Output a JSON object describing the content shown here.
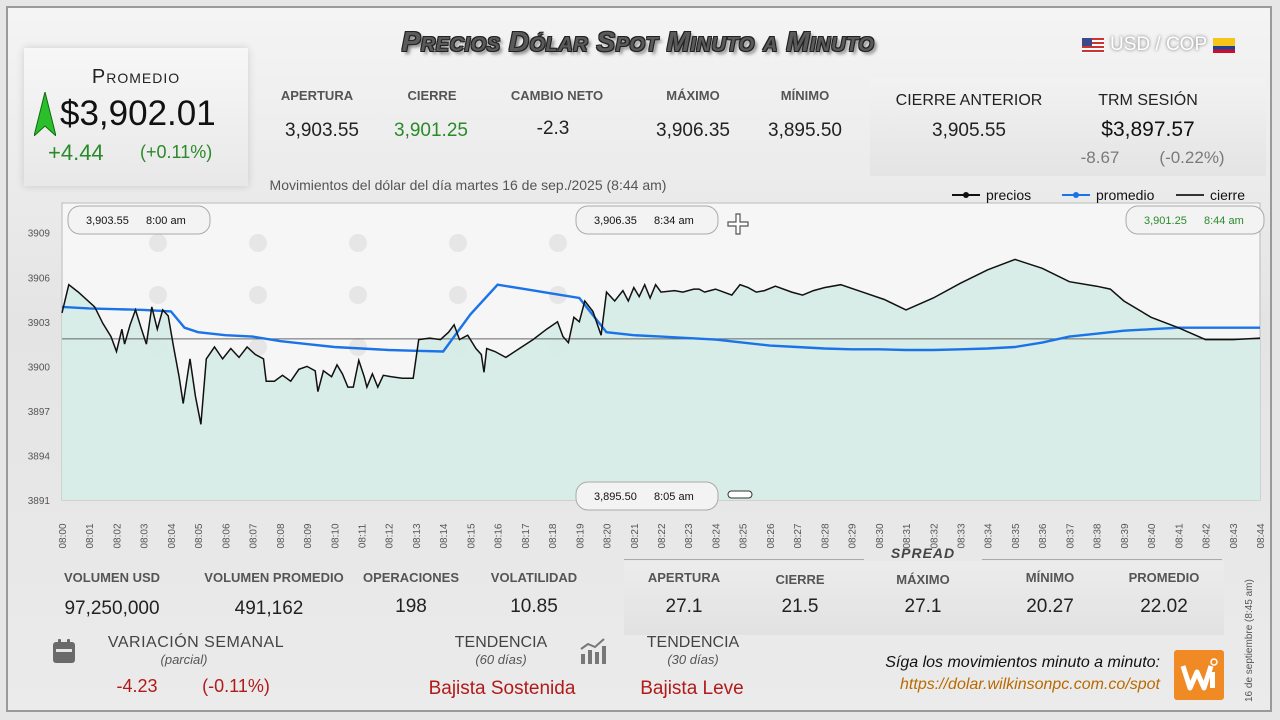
{
  "header": {
    "title": "Precios Dólar Spot Minuto a Minuto",
    "pair": "USD / COP"
  },
  "promedio": {
    "label": "Promedio",
    "value": "$3,902.01",
    "change": "+4.44",
    "change_pct": "(+0.11%)"
  },
  "stats": [
    {
      "label": "APERTURA",
      "value": "3,903.55"
    },
    {
      "label": "CIERRE",
      "value": "3,901.25"
    },
    {
      "label": "CAMBIO NETO",
      "value": "-2.3"
    },
    {
      "label": "MÁXIMO",
      "value": "3,906.35"
    },
    {
      "label": "MÍNIMO",
      "value": "3,895.50"
    }
  ],
  "cierre_anterior": {
    "label": "CIERRE ANTERIOR",
    "value": "3,905.55"
  },
  "trm": {
    "label": "TRM SESIÓN",
    "value": "$3,897.57",
    "change": "-8.67",
    "change_pct": "(-0.22%)"
  },
  "chart_data": {
    "type": "line",
    "title": "Movimientos del dólar del día martes 16 de sep./2025 (8:44 am)",
    "legend": [
      "precios",
      "promedio",
      "cierre"
    ],
    "legend_position": "top-right",
    "ylim": [
      3891,
      3911
    ],
    "yticks": [
      3891,
      3894,
      3897,
      3900,
      3903,
      3906,
      3909
    ],
    "xticks": [
      "08:00",
      "08:01",
      "08:02",
      "08:03",
      "08:04",
      "08:05",
      "08:06",
      "08:07",
      "08:08",
      "08:09",
      "08:10",
      "08:11",
      "08:12",
      "08:13",
      "08:14",
      "08:15",
      "08:16",
      "08:17",
      "08:18",
      "08:19",
      "08:20",
      "08:21",
      "08:22",
      "08:23",
      "08:24",
      "08:25",
      "08:26",
      "08:27",
      "08:28",
      "08:29",
      "08:30",
      "08:31",
      "08:32",
      "08:33",
      "08:34",
      "08:35",
      "08:36",
      "08:37",
      "08:38",
      "08:39",
      "08:40",
      "08:41",
      "08:42",
      "08:43",
      "08:44"
    ],
    "series": [
      {
        "name": "precios",
        "color": "#111111",
        "points": [
          [
            0,
            3903.6
          ],
          [
            0.25,
            3905.5
          ],
          [
            0.6,
            3905.0
          ],
          [
            1.2,
            3904.0
          ],
          [
            1.5,
            3902.9
          ],
          [
            1.8,
            3902.0
          ],
          [
            2.0,
            3901.0
          ],
          [
            2.2,
            3902.5
          ],
          [
            2.3,
            3901.5
          ],
          [
            2.5,
            3902.8
          ],
          [
            2.7,
            3903.8
          ],
          [
            2.9,
            3902.6
          ],
          [
            3.1,
            3901.5
          ],
          [
            3.3,
            3904.0
          ],
          [
            3.5,
            3902.5
          ],
          [
            3.7,
            3903.8
          ],
          [
            3.9,
            3903.4
          ],
          [
            4.1,
            3901.3
          ],
          [
            4.3,
            3899.3
          ],
          [
            4.45,
            3897.5
          ],
          [
            4.7,
            3900.5
          ],
          [
            4.9,
            3898.0
          ],
          [
            5.1,
            3896.1
          ],
          [
            5.3,
            3900.5
          ],
          [
            5.6,
            3901.3
          ],
          [
            5.9,
            3900.5
          ],
          [
            6.2,
            3901.2
          ],
          [
            6.5,
            3900.6
          ],
          [
            6.8,
            3901.3
          ],
          [
            7.1,
            3900.8
          ],
          [
            7.4,
            3900.5
          ],
          [
            7.5,
            3899.0
          ],
          [
            7.8,
            3899.0
          ],
          [
            8.1,
            3899.4
          ],
          [
            8.4,
            3899.0
          ],
          [
            8.7,
            3899.8
          ],
          [
            9.0,
            3900.0
          ],
          [
            9.3,
            3899.7
          ],
          [
            9.4,
            3898.3
          ],
          [
            9.6,
            3899.7
          ],
          [
            9.9,
            3899.3
          ],
          [
            10.1,
            3900.1
          ],
          [
            10.3,
            3899.5
          ],
          [
            10.5,
            3898.6
          ],
          [
            10.7,
            3898.6
          ],
          [
            10.9,
            3900.4
          ],
          [
            11.1,
            3899.3
          ],
          [
            11.2,
            3898.6
          ],
          [
            11.4,
            3899.5
          ],
          [
            11.6,
            3898.6
          ],
          [
            11.8,
            3899.4
          ],
          [
            12.1,
            3899.3
          ],
          [
            12.5,
            3899.2
          ],
          [
            12.9,
            3899.2
          ],
          [
            13.1,
            3901.8
          ],
          [
            13.5,
            3901.9
          ],
          [
            13.9,
            3901.8
          ],
          [
            14.2,
            3902.3
          ],
          [
            14.4,
            3902.8
          ],
          [
            14.6,
            3901.8
          ],
          [
            14.9,
            3902.1
          ],
          [
            15.2,
            3901.2
          ],
          [
            15.4,
            3900.8
          ],
          [
            15.5,
            3899.6
          ],
          [
            15.6,
            3901.2
          ],
          [
            15.9,
            3901.0
          ],
          [
            16.3,
            3900.6
          ],
          [
            16.8,
            3901.2
          ],
          [
            17.3,
            3901.8
          ],
          [
            17.8,
            3902.5
          ],
          [
            18.2,
            3903.0
          ],
          [
            18.4,
            3902.0
          ],
          [
            18.6,
            3901.6
          ],
          [
            18.8,
            3903.3
          ],
          [
            19.0,
            3903.0
          ],
          [
            19.2,
            3904.4
          ],
          [
            19.5,
            3903.7
          ],
          [
            19.8,
            3902.1
          ],
          [
            20.0,
            3905.0
          ],
          [
            20.3,
            3904.4
          ],
          [
            20.6,
            3905.1
          ],
          [
            20.8,
            3904.4
          ],
          [
            21.0,
            3905.3
          ],
          [
            21.2,
            3904.7
          ],
          [
            21.4,
            3905.5
          ],
          [
            21.6,
            3904.6
          ],
          [
            21.8,
            3905.5
          ],
          [
            22.0,
            3905.0
          ],
          [
            22.5,
            3905.1
          ],
          [
            22.8,
            3905.0
          ],
          [
            23.2,
            3905.2
          ],
          [
            23.4,
            3905.2
          ],
          [
            23.6,
            3905.0
          ],
          [
            23.8,
            3905.1
          ],
          [
            24.0,
            3905.2
          ],
          [
            24.3,
            3905.0
          ],
          [
            24.6,
            3904.8
          ],
          [
            24.9,
            3905.5
          ],
          [
            25.2,
            3905.3
          ],
          [
            25.5,
            3905.0
          ],
          [
            25.8,
            3905.1
          ],
          [
            26.2,
            3905.4
          ],
          [
            26.8,
            3905.0
          ],
          [
            27.2,
            3904.8
          ],
          [
            27.6,
            3905.1
          ],
          [
            28.0,
            3905.3
          ],
          [
            28.6,
            3905.5
          ],
          [
            29.4,
            3905.0
          ],
          [
            30.2,
            3904.5
          ],
          [
            31.0,
            3903.8
          ],
          [
            32.0,
            3904.6
          ],
          [
            33.0,
            3905.6
          ],
          [
            34.0,
            3906.5
          ],
          [
            35.0,
            3907.2
          ],
          [
            36.0,
            3906.6
          ],
          [
            37.0,
            3905.7
          ],
          [
            38.0,
            3905.4
          ],
          [
            38.5,
            3905.2
          ],
          [
            39.0,
            3904.4
          ],
          [
            40.0,
            3903.3
          ],
          [
            41.0,
            3902.6
          ],
          [
            42.0,
            3901.8
          ],
          [
            43.0,
            3901.8
          ],
          [
            44.0,
            3901.9
          ]
        ]
      },
      {
        "name": "promedio",
        "color": "#1a73e8",
        "points": [
          [
            0,
            3904.0
          ],
          [
            1,
            3903.9
          ],
          [
            2,
            3903.85
          ],
          [
            3,
            3903.8
          ],
          [
            4,
            3903.7
          ],
          [
            4.5,
            3902.6
          ],
          [
            5,
            3902.3
          ],
          [
            6,
            3902.1
          ],
          [
            7,
            3902.0
          ],
          [
            8,
            3901.7
          ],
          [
            9,
            3901.5
          ],
          [
            10,
            3901.3
          ],
          [
            11,
            3901.2
          ],
          [
            12,
            3901.1
          ],
          [
            13,
            3901.05
          ],
          [
            14,
            3901.0
          ],
          [
            15,
            3903.5
          ],
          [
            16,
            3905.5
          ],
          [
            17,
            3905.2
          ],
          [
            18,
            3904.9
          ],
          [
            19,
            3904.6
          ],
          [
            20,
            3902.3
          ],
          [
            21,
            3902.1
          ],
          [
            22,
            3902.0
          ],
          [
            23,
            3901.9
          ],
          [
            24,
            3901.8
          ],
          [
            25,
            3901.6
          ],
          [
            26,
            3901.4
          ],
          [
            27,
            3901.3
          ],
          [
            28,
            3901.2
          ],
          [
            29,
            3901.15
          ],
          [
            30,
            3901.15
          ],
          [
            31,
            3901.1
          ],
          [
            32,
            3901.1
          ],
          [
            33,
            3901.15
          ],
          [
            34,
            3901.2
          ],
          [
            35,
            3901.3
          ],
          [
            36,
            3901.6
          ],
          [
            37,
            3902.0
          ],
          [
            38,
            3902.2
          ],
          [
            39,
            3902.4
          ],
          [
            40,
            3902.5
          ],
          [
            41,
            3902.6
          ],
          [
            42,
            3902.6
          ],
          [
            43,
            3902.6
          ],
          [
            44,
            3902.6
          ]
        ]
      },
      {
        "name": "cierre",
        "color": "#555555",
        "points": [
          [
            0,
            3901.85
          ],
          [
            44,
            3901.85
          ]
        ]
      }
    ],
    "annotations": [
      {
        "price": "3,903.55",
        "time": "8:00 am"
      },
      {
        "price": "3,906.35",
        "time": "8:34 am"
      },
      {
        "price": "3,901.25",
        "time": "8:44 am"
      },
      {
        "price": "3,895.50",
        "time": "8:05 am"
      }
    ]
  },
  "volume": [
    {
      "label": "VOLUMEN USD",
      "value": "97,250,000"
    },
    {
      "label": "VOLUMEN PROMEDIO",
      "value": "491,162"
    },
    {
      "label": "OPERACIONES",
      "value": "198"
    },
    {
      "label": "VOLATILIDAD",
      "value": "10.85"
    }
  ],
  "spread": {
    "title": "SPREAD",
    "items": [
      {
        "label": "APERTURA",
        "value": "27.1"
      },
      {
        "label": "CIERRE",
        "value": "21.5"
      },
      {
        "label": "MÁXIMO",
        "value": "27.1"
      },
      {
        "label": "MÍNIMO",
        "value": "20.27"
      },
      {
        "label": "PROMEDIO",
        "value": "22.02"
      }
    ]
  },
  "variacion": {
    "label": "VARIACIÓN SEMANAL",
    "sub": "(parcial)",
    "value": "-4.23",
    "pct": "(-0.11%)"
  },
  "tendencia60": {
    "label": "TENDENCIA",
    "sub": "(60 días)",
    "value": "Bajista Sostenida"
  },
  "tendencia30": {
    "label": "TENDENCIA",
    "sub": "(30 días)",
    "value": "Bajista Leve"
  },
  "footer": {
    "cta": "Síga los movimientos minuto a minuto:",
    "url": "https://dolar.wilkinsonpc.com.co/spot",
    "side": "16 de septiembre (8:45 am)"
  },
  "colors": {
    "up": "#2a8a2a",
    "down": "#b21a1a",
    "area": "#d6ece6",
    "promedio": "#1a73e8"
  }
}
